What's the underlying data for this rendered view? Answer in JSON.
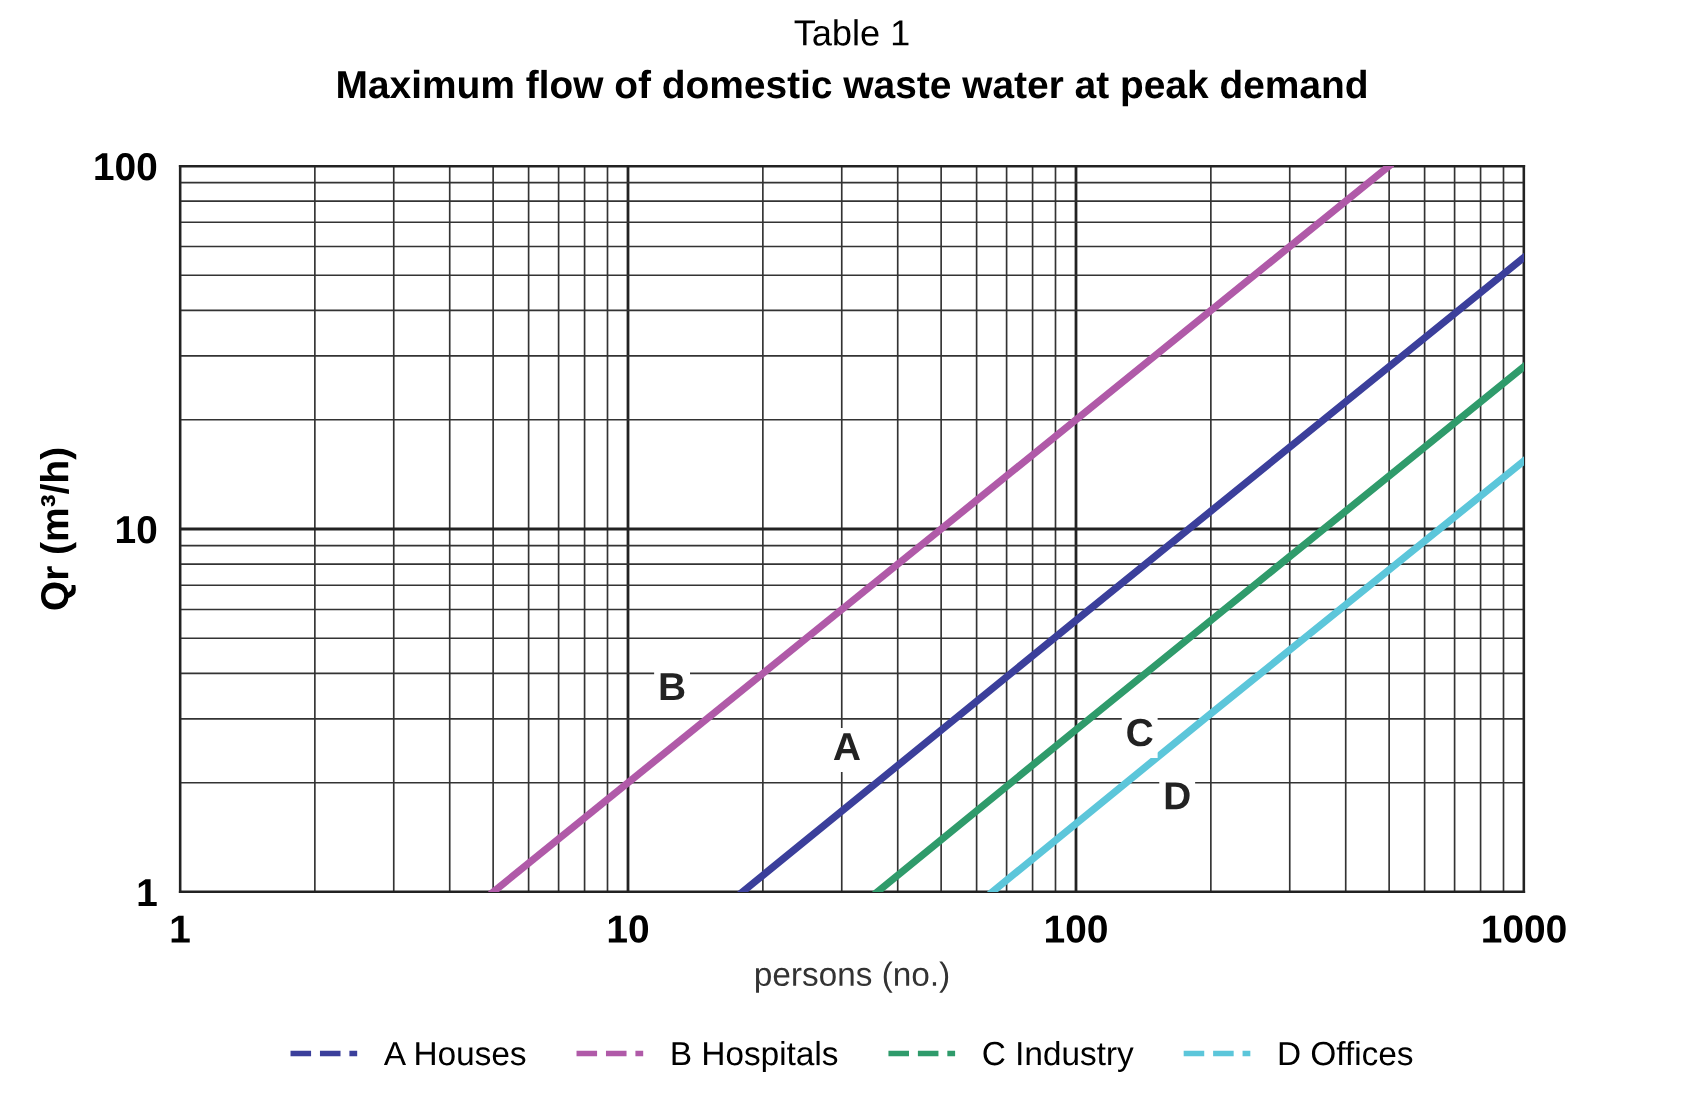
{
  "chart_data": {
    "type": "line",
    "title": "Table 1",
    "subtitle": "Maximum flow of domestic waste water at peak demand",
    "xlabel": "persons (no.)",
    "ylabel": "Qr (m³/h)",
    "log": "xy",
    "xlim": [
      1,
      1000
    ],
    "ylim": [
      1,
      100
    ],
    "xticks": [
      1,
      10,
      100,
      1000
    ],
    "yticks": [
      1,
      10,
      100
    ],
    "grid": true,
    "legend": "bottom",
    "marker": "none",
    "line_style": "solid",
    "series": [
      {
        "name": "A Houses",
        "color": "#3b3f9b",
        "x": [
          18,
          100,
          1000
        ],
        "values": [
          1,
          5.6,
          56
        ]
      },
      {
        "name": "B Hospitals",
        "color": "#b05aa8",
        "x": [
          5,
          50,
          500
        ],
        "values": [
          1,
          10,
          100
        ]
      },
      {
        "name": "C Industry",
        "color": "#2f9b6b",
        "x": [
          36,
          100,
          1000
        ],
        "values": [
          1,
          2.8,
          28
        ]
      },
      {
        "name": "D Offices",
        "color": "#5cc6da",
        "x": [
          65,
          200,
          1000
        ],
        "values": [
          1,
          3.1,
          15.4
        ]
      }
    ],
    "annotations": [
      "A",
      "B",
      "C",
      "D"
    ]
  }
}
